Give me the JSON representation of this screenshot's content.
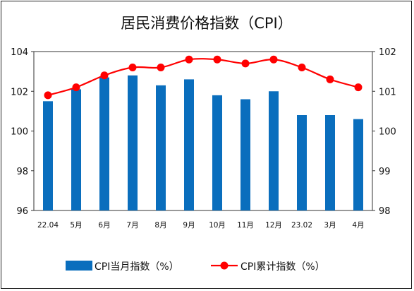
{
  "chart_data": {
    "type": "bar+line",
    "title": "居民消费价格指数（CPI）",
    "categories": [
      "22.04",
      "5月",
      "6月",
      "7月",
      "8月",
      "9月",
      "10月",
      "11月",
      "12月",
      "23.02",
      "3月",
      "4月"
    ],
    "left_axis": {
      "ylim": [
        96,
        104
      ],
      "ticks": [
        "96",
        "98",
        "100",
        "102",
        "104"
      ]
    },
    "right_axis": {
      "ylim": [
        98,
        102
      ],
      "ticks": [
        "98",
        "99",
        "100",
        "101",
        "102"
      ]
    },
    "series": [
      {
        "name": "CPI当月指数（%）",
        "type": "bar",
        "axis": "left",
        "color": "#0a6ebd",
        "values": [
          101.5,
          102.1,
          102.7,
          102.8,
          102.3,
          102.6,
          101.8,
          101.6,
          102.0,
          100.8,
          100.8,
          100.6
        ]
      },
      {
        "name": "CPI累计指数（%）",
        "type": "line",
        "axis": "right",
        "color": "#ff0000",
        "values": [
          100.9,
          101.1,
          101.4,
          101.6,
          101.6,
          101.8,
          101.8,
          101.7,
          101.8,
          101.6,
          101.3,
          101.1
        ]
      }
    ],
    "grid": false,
    "legend": "bottom"
  }
}
